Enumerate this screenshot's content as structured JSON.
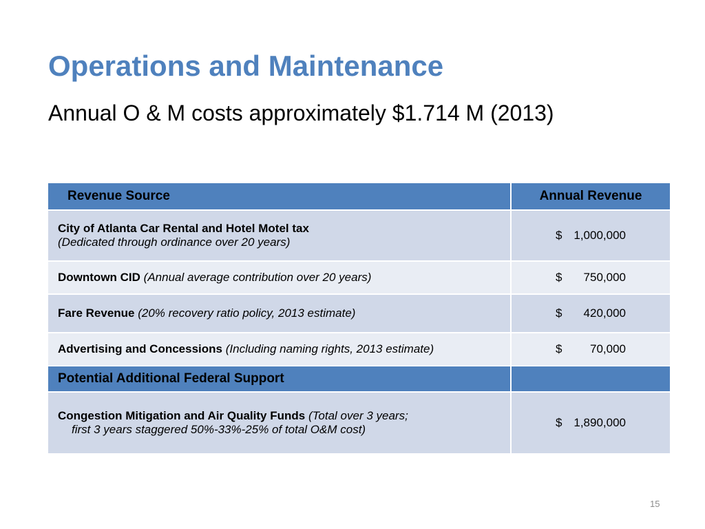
{
  "slide": {
    "title": "Operations and Maintenance",
    "subtitle": "Annual O & M costs approximately $1.714 M (2013)",
    "page_number": "15"
  },
  "table": {
    "headers": [
      "Revenue Source",
      "Annual Revenue"
    ],
    "rows": [
      {
        "source_bold": "City of Atlanta Car Rental and Hotel Motel tax",
        "source_italic": "(Dedicated through ordinance over 20 years)",
        "currency": "$",
        "amount": "1,000,000"
      },
      {
        "source_bold": "Downtown CID",
        "source_italic": "(Annual average contribution over 20 years)",
        "currency": "$",
        "amount": "750,000"
      },
      {
        "source_bold": "Fare Revenue",
        "source_italic": "(20% recovery ratio policy, 2013 estimate)",
        "currency": "$",
        "amount": "420,000"
      },
      {
        "source_bold": "Advertising and Concessions",
        "source_italic": "(Including naming rights, 2013 estimate)",
        "currency": "$",
        "amount": "70,000"
      }
    ],
    "section_header": "Potential Additional Federal Support",
    "federal_row": {
      "source_bold": "Congestion Mitigation and Air Quality Funds",
      "source_italic_1": "(Total over 3 years;",
      "source_italic_2": "first 3 years staggered 50%-33%-25% of total O&M cost)",
      "currency": "$",
      "amount": "1,890,000"
    }
  },
  "colors": {
    "title": "#4f81bd",
    "header_fill": "#4f81bd",
    "row_dark": "#d0d8e8",
    "row_light": "#e9edf4"
  }
}
